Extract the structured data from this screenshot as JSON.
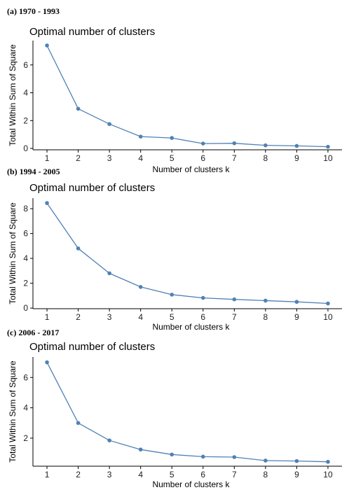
{
  "chart_data": [
    {
      "panel_label": "(a) 1970 - 1993",
      "type": "line",
      "title": "Optimal number of clusters",
      "xlabel": "Number of clusters k",
      "ylabel": "Total Within Sum of Square",
      "x": [
        1,
        2,
        3,
        4,
        5,
        6,
        7,
        8,
        9,
        10
      ],
      "y": [
        7.4,
        2.85,
        1.75,
        0.85,
        0.75,
        0.35,
        0.37,
        0.22,
        0.18,
        0.12
      ],
      "yticks": [
        0,
        2,
        4,
        6
      ],
      "ylim": [
        -0.1,
        7.75
      ],
      "xlim": [
        0.55,
        10.45
      ],
      "grid": false,
      "color": "#4F81B4"
    },
    {
      "panel_label": "(b) 1994 - 2005",
      "type": "line",
      "title": "Optimal number of clusters",
      "xlabel": "Number of clusters k",
      "ylabel": "Total Within Sum of Square",
      "x": [
        1,
        2,
        3,
        4,
        5,
        6,
        7,
        8,
        9,
        10
      ],
      "y": [
        8.45,
        4.8,
        2.8,
        1.7,
        1.08,
        0.82,
        0.7,
        0.6,
        0.5,
        0.37
      ],
      "yticks": [
        0,
        2,
        4,
        6,
        8
      ],
      "ylim": [
        -0.05,
        8.85
      ],
      "xlim": [
        0.55,
        10.45
      ],
      "grid": false,
      "color": "#4F81B4"
    },
    {
      "panel_label": "(c) 2006 - 2017",
      "type": "line",
      "title": "Optimal number of clusters",
      "xlabel": "Number of clusters k",
      "ylabel": "Total Within Sum of Square",
      "x": [
        1,
        2,
        3,
        4,
        5,
        6,
        7,
        8,
        9,
        10
      ],
      "y": [
        7.0,
        3.0,
        1.85,
        1.25,
        0.92,
        0.78,
        0.75,
        0.52,
        0.49,
        0.44
      ],
      "yticks": [
        2,
        4,
        6
      ],
      "ylim": [
        0.15,
        7.35
      ],
      "xlim": [
        0.55,
        10.45
      ],
      "grid": false,
      "color": "#4F81B4"
    }
  ]
}
